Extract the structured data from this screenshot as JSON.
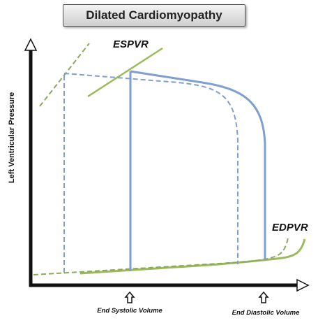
{
  "title": "Dilated Cardiomyopathy",
  "y_axis_label": "Left Ventricular Pressure",
  "espvr_label": "ESPVR",
  "edpvr_label": "EDPVR",
  "end_systolic_label": "End Systolic Volume",
  "end_diastolic_label": "End Diastolic Volume",
  "colors": {
    "loop_blue": "#7f9fcf",
    "relation_green": "#9bba59",
    "dashed_green": "#8ca85a",
    "axis": "#111111"
  },
  "icons": {
    "marker": "up-arrow-outline"
  }
}
